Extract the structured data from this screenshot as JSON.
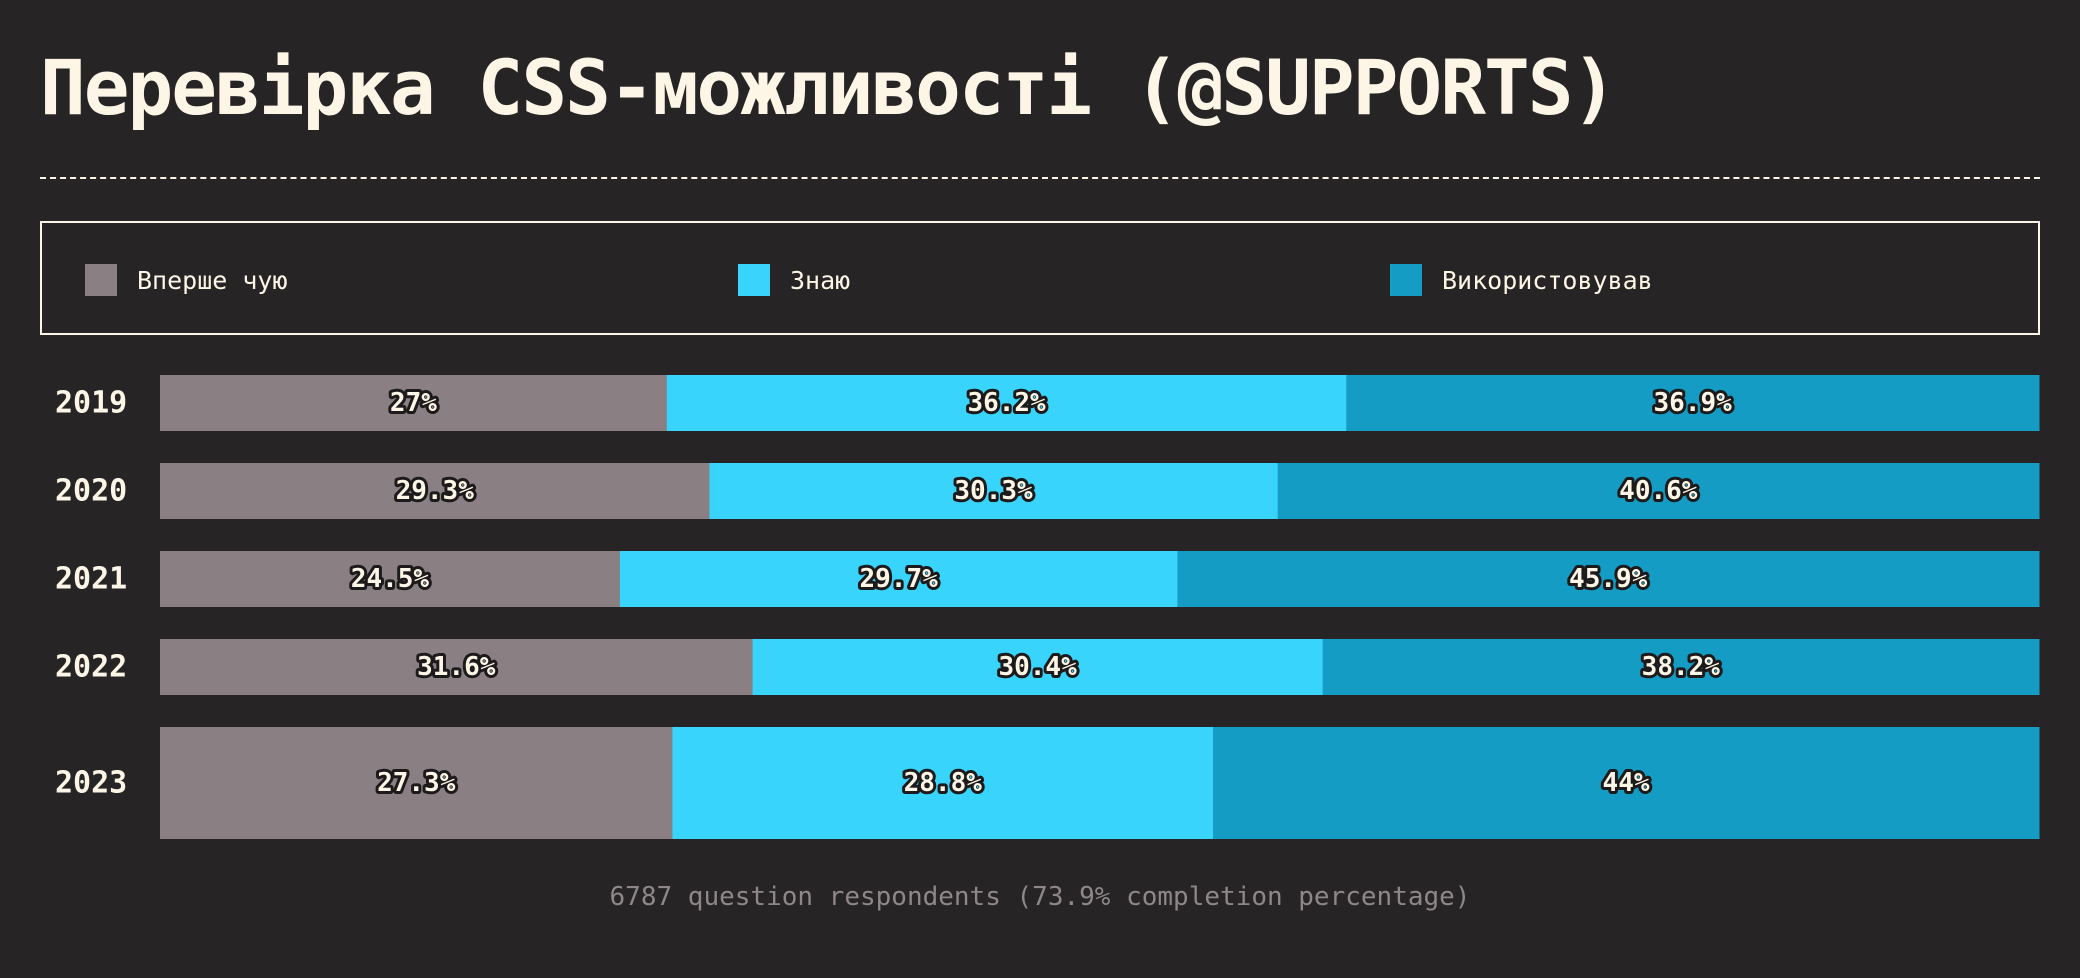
{
  "chart_data": {
    "type": "bar",
    "orientation": "horizontal",
    "stacked": true,
    "title": "Перевірка CSS-можливості (@SUPPORTS)",
    "categories": [
      "2019",
      "2020",
      "2021",
      "2022",
      "2023"
    ],
    "series": [
      {
        "name": "Вперше чую",
        "color": "#8a8084",
        "values": [
          27,
          29.3,
          24.5,
          31.6,
          27.3
        ],
        "labels": [
          "27%",
          "29.3%",
          "24.5%",
          "31.6%",
          "27.3%"
        ]
      },
      {
        "name": "Знаю",
        "color": "#38d4fc",
        "values": [
          36.2,
          30.3,
          29.7,
          30.4,
          28.8
        ],
        "labels": [
          "36.2%",
          "30.3%",
          "29.7%",
          "30.4%",
          "28.8%"
        ]
      },
      {
        "name": "Використовував",
        "color": "#149cc4",
        "values": [
          36.9,
          40.6,
          45.9,
          38.2,
          44
        ],
        "labels": [
          "36.9%",
          "40.6%",
          "45.9%",
          "38.2%",
          "44%"
        ]
      }
    ],
    "xlim": [
      0,
      100
    ],
    "legend_position": "top",
    "grid": false,
    "footer": "6787 question respondents (73.9% completion percentage)"
  }
}
